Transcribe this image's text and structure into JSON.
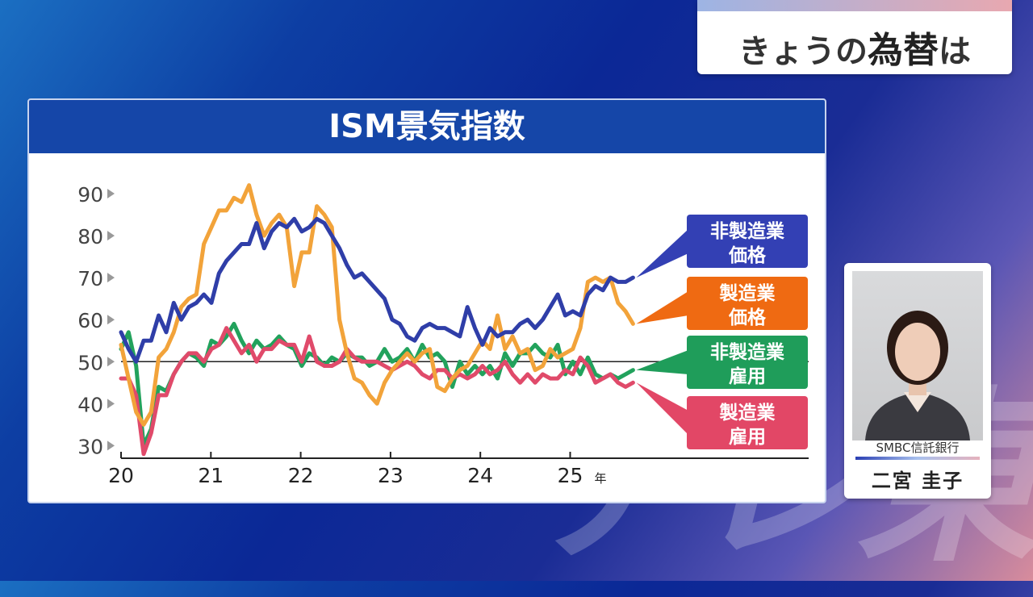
{
  "header": {
    "prefix": "きょうの",
    "keyword": "為替",
    "suffix": "は"
  },
  "watermark": "テレ東",
  "chart_data": {
    "type": "line",
    "title": "ISM景気指数",
    "year_unit": "年",
    "x_ticks": [
      {
        "label": "20",
        "value": 2020
      },
      {
        "label": "21",
        "value": 2021
      },
      {
        "label": "22",
        "value": 2022
      },
      {
        "label": "23",
        "value": 2023
      },
      {
        "label": "24",
        "value": 2024
      },
      {
        "label": "25",
        "value": 2025
      }
    ],
    "xlim": [
      2020,
      2026.5
    ],
    "y_ticks": [
      30,
      40,
      50,
      60,
      70,
      80,
      90
    ],
    "ylim": [
      27,
      95
    ],
    "reference_line": 50,
    "series": [
      {
        "name_lines": [
          "非製造業",
          "価格"
        ],
        "color": "#2f3ea8",
        "label_bg": "#3340b4",
        "values": [
          57,
          53,
          50,
          55,
          55,
          61,
          57,
          64,
          60,
          63,
          64,
          66,
          64,
          71,
          74,
          76,
          78,
          78,
          83,
          77,
          81,
          83,
          82,
          84,
          81,
          82,
          84,
          83,
          80,
          77,
          73,
          70,
          71,
          69,
          67,
          65,
          60,
          59,
          56,
          55,
          58,
          59,
          58,
          58,
          57,
          56,
          63,
          58,
          54,
          58,
          56,
          57,
          57,
          59,
          60,
          58,
          60,
          63,
          66,
          61,
          62,
          61,
          66,
          68,
          67,
          70,
          69,
          69,
          70
        ]
      },
      {
        "name_lines": [
          "製造業",
          "価格"
        ],
        "color": "#f2a33a",
        "label_bg": "#ef6a12",
        "values": [
          54,
          46,
          38,
          35,
          38,
          51,
          53,
          57,
          63,
          65,
          66,
          78,
          82,
          86,
          86,
          89,
          88,
          92,
          85,
          80,
          83,
          85,
          82,
          68,
          76,
          76,
          87,
          85,
          82,
          60,
          52,
          46,
          45,
          42,
          40,
          45,
          48,
          50,
          52,
          50,
          52,
          53,
          44,
          43,
          46,
          48,
          49,
          52,
          55,
          53,
          61,
          53,
          56,
          52,
          53,
          48,
          49,
          53,
          51,
          52,
          53,
          58,
          69,
          70,
          69,
          70,
          64,
          62,
          59
        ]
      },
      {
        "name_lines": [
          "非製造業",
          "雇用"
        ],
        "color": "#22a25c",
        "label_bg": "#1f9d5a",
        "values": [
          53,
          57,
          49,
          30,
          34,
          44,
          43,
          47,
          50,
          52,
          51,
          49,
          55,
          54,
          56,
          59,
          55,
          52,
          55,
          53,
          54,
          56,
          54,
          53,
          49,
          52,
          51,
          49,
          51,
          50,
          52,
          51,
          51,
          49,
          50,
          53,
          50,
          51,
          53,
          50,
          54,
          51,
          52,
          50,
          44,
          50,
          47,
          49,
          47,
          49,
          46,
          52,
          49,
          52,
          52,
          54,
          52,
          51,
          54,
          47,
          50,
          47,
          51,
          47,
          46,
          47,
          46,
          47,
          48
        ]
      },
      {
        "name_lines": [
          "製造業",
          "雇用"
        ],
        "color": "#e04a6a",
        "label_bg": "#e24766",
        "values": [
          46,
          46,
          42,
          28,
          33,
          42,
          42,
          47,
          50,
          52,
          52,
          50,
          53,
          54,
          58,
          55,
          52,
          54,
          50,
          53,
          53,
          55,
          54,
          54,
          50,
          56,
          50,
          49,
          49,
          50,
          53,
          51,
          50,
          50,
          50,
          49,
          48,
          49,
          50,
          49,
          47,
          46,
          48,
          48,
          46,
          47,
          46,
          47,
          49,
          47,
          48,
          50,
          47,
          45,
          47,
          45,
          47,
          46,
          46,
          48,
          47,
          51,
          49,
          45,
          46,
          47,
          45,
          44,
          45
        ]
      }
    ]
  },
  "person": {
    "company": "SMBC信託銀行",
    "name": "二宮 圭子"
  },
  "colors": {
    "header_blue": "#1546a8"
  }
}
